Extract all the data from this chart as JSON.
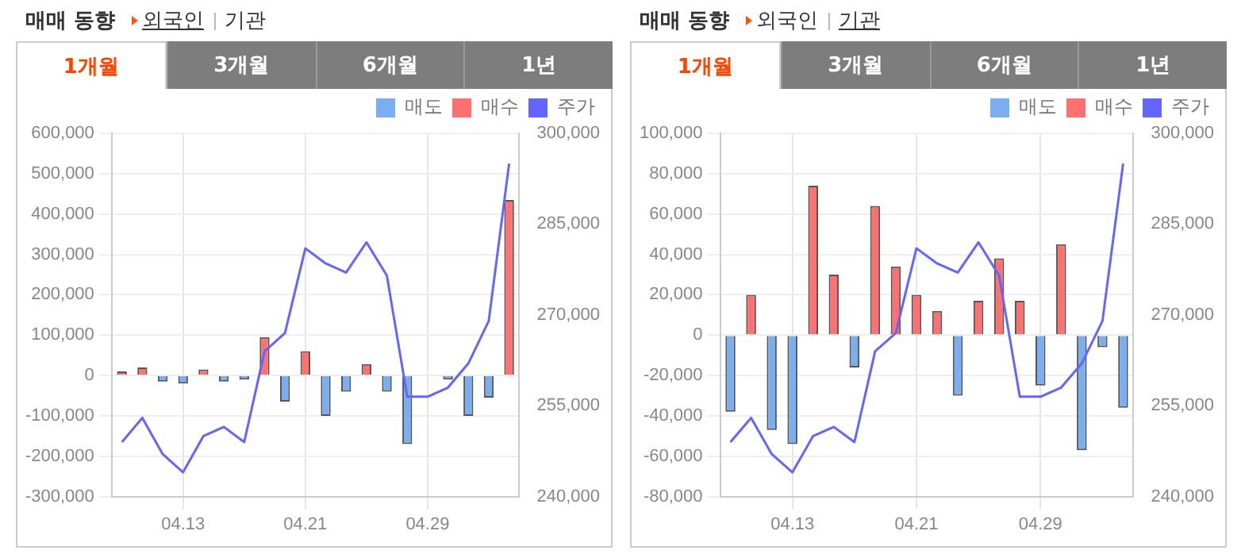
{
  "chart_data": [
    {
      "type": "bar",
      "title": "매매 동향",
      "annotations": [
        "외국인",
        "기관",
        "1개월",
        "3개월",
        "6개월",
        "1년"
      ],
      "categories": [
        null,
        null,
        null,
        "04.13",
        null,
        null,
        null,
        null,
        null,
        "04.21",
        null,
        null,
        null,
        null,
        null,
        "04.29",
        null,
        null,
        null,
        null
      ],
      "series": [
        {
          "name": "매도",
          "color": "#7aaef0",
          "values": [
            0,
            0,
            -15000,
            -20000,
            0,
            -15000,
            -10000,
            0,
            -65000,
            0,
            -100000,
            -40000,
            0,
            -40000,
            -170000,
            0,
            -10000,
            -100000,
            -55000,
            0
          ]
        },
        {
          "name": "매수",
          "color": "#ff7070",
          "values": [
            10000,
            20000,
            0,
            0,
            15000,
            0,
            0,
            95000,
            0,
            60000,
            0,
            0,
            28000,
            0,
            0,
            0,
            0,
            0,
            0,
            435000
          ]
        },
        {
          "name": "주가",
          "type": "line",
          "axis": "y2",
          "color": "#6464ff",
          "values": [
            249000,
            253000,
            247000,
            244000,
            250000,
            251500,
            249000,
            264000,
            267000,
            281000,
            278500,
            277000,
            282000,
            276500,
            256500,
            256500,
            258000,
            262000,
            269000,
            295000
          ]
        }
      ],
      "stacked": true,
      "ylim": [
        -300000,
        600000
      ],
      "yticks": [
        {
          "value": -300000,
          "label": "-300,000"
        },
        {
          "value": -200000,
          "label": "-200,000"
        },
        {
          "value": -100000,
          "label": "-100,000"
        },
        0,
        {
          "value": 100000,
          "label": "100,000"
        },
        {
          "value": 200000,
          "label": "200,000"
        },
        {
          "value": 300000,
          "label": "300,000"
        },
        {
          "value": 400000,
          "label": "400,000"
        },
        {
          "value": 500000,
          "label": "500,000"
        },
        {
          "value": 600000,
          "label": "600,000"
        }
      ],
      "y2lim": [
        240000,
        300000
      ],
      "y2ticks": [
        {
          "value": 240000,
          "label": "240,000"
        },
        {
          "value": 255000,
          "label": "255,000"
        },
        {
          "value": 270000,
          "label": "270,000"
        },
        {
          "value": 285000,
          "label": "285,000"
        },
        {
          "value": 300000,
          "label": "300,000"
        }
      ],
      "grid": true,
      "legend": "top right",
      "marker": "none"
    },
    {
      "type": "bar",
      "title": "매매 동향",
      "annotations": [
        "외국인",
        "기관",
        "1개월",
        "3개월",
        "6개월",
        "1년"
      ],
      "categories": [
        null,
        null,
        null,
        "04.13",
        null,
        null,
        null,
        null,
        null,
        "04.21",
        null,
        null,
        null,
        null,
        null,
        "04.29",
        null,
        null,
        null,
        null
      ],
      "series": [
        {
          "name": "매도",
          "color": "#7aaef0",
          "values": [
            -38000,
            0,
            -47000,
            -54000,
            0,
            0,
            -16000,
            0,
            0,
            0,
            0,
            -30000,
            0,
            0,
            0,
            -25000,
            0,
            -57000,
            -6000,
            -36000
          ]
        },
        {
          "name": "매수",
          "color": "#ff7070",
          "values": [
            0,
            20000,
            0,
            0,
            74000,
            30000,
            0,
            64000,
            34000,
            20000,
            12000,
            0,
            17000,
            38000,
            17000,
            0,
            45000,
            0,
            0,
            0
          ]
        },
        {
          "name": "주가",
          "type": "line",
          "axis": "y2",
          "color": "#6464ff",
          "values": [
            249000,
            253000,
            247000,
            244000,
            250000,
            251500,
            249000,
            264000,
            267000,
            281000,
            278500,
            277000,
            282000,
            276500,
            256500,
            256500,
            258000,
            262000,
            269000,
            295000
          ]
        }
      ],
      "stacked": true,
      "ylim": [
        -80000,
        100000
      ],
      "yticks": [
        {
          "value": -80000,
          "label": "-80,000"
        },
        {
          "value": -60000,
          "label": "-60,000"
        },
        {
          "value": -40000,
          "label": "-40,000"
        },
        {
          "value": -20000,
          "label": "-20,000"
        },
        0,
        {
          "value": 20000,
          "label": "20,000"
        },
        {
          "value": 40000,
          "label": "40,000"
        },
        {
          "value": 60000,
          "label": "60,000"
        },
        {
          "value": 80000,
          "label": "80,000"
        },
        {
          "value": 100000,
          "label": "100,000"
        }
      ],
      "y2lim": [
        240000,
        300000
      ],
      "y2ticks": [
        {
          "value": 240000,
          "label": "240,000"
        },
        {
          "value": 255000,
          "label": "255,000"
        },
        {
          "value": 270000,
          "label": "270,000"
        },
        {
          "value": 285000,
          "label": "285,000"
        },
        {
          "value": 300000,
          "label": "300,000"
        }
      ],
      "grid": true,
      "legend": "top right",
      "marker": "none"
    }
  ]
}
